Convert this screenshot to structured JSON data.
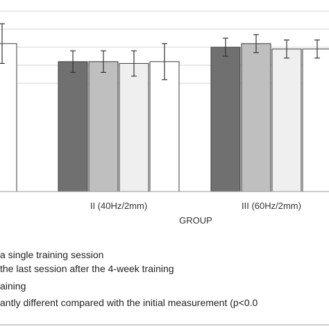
{
  "chart_data": {
    "type": "bar",
    "xlabel": "GROUP",
    "ylabel": "",
    "ylim": [
      0,
      10
    ],
    "grid": true,
    "groups": [
      {
        "label": "",
        "values": [
          8.2
        ],
        "errors": [
          1.1
        ],
        "colors": [
          "#ffffff"
        ]
      },
      {
        "label": "II (40Hz/2mm)",
        "values": [
          7.2,
          7.2,
          7.1,
          7.2
        ],
        "errors": [
          0.6,
          0.6,
          0.7,
          1.0
        ],
        "colors": [
          "#707070",
          "#bfbfbf",
          "#efefef",
          "#ffffff"
        ]
      },
      {
        "label": "III (60Hz/2mm)",
        "values": [
          8.0,
          8.2,
          7.9,
          7.9
        ],
        "errors": [
          0.5,
          0.5,
          0.5,
          0.5
        ],
        "colors": [
          "#707070",
          "#bfbfbf",
          "#efefef",
          "#ffffff"
        ]
      }
    ],
    "notes": [
      "a single training session",
      "the last session after the 4-week training",
      "aining",
      "antly  different compared with the initial measurement (p<0.0"
    ]
  }
}
